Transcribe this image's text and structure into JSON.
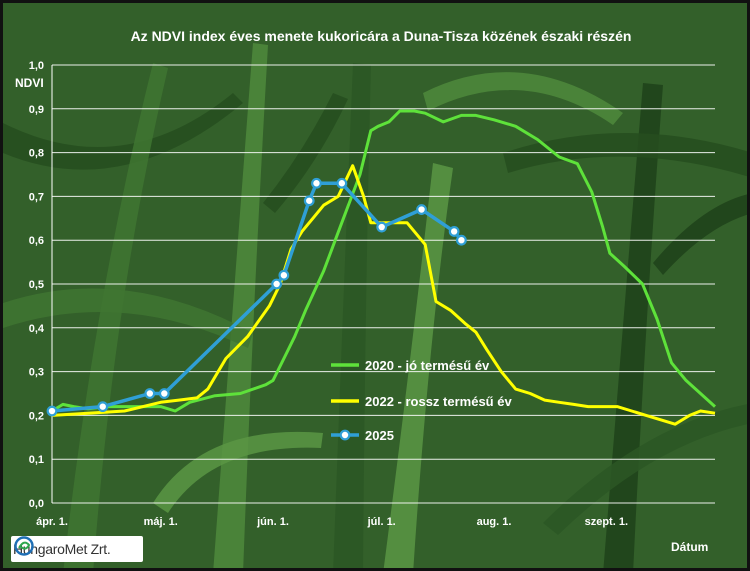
{
  "chart_data": {
    "type": "line",
    "title": "Az NDVI index éves menete kukoricára a Duna-Tisza közének északi részén",
    "ylabel": "NDVI",
    "xlabel": "Dátum",
    "ylim": [
      0,
      1.0
    ],
    "yticks": [
      "0,0",
      "0,1",
      "0,2",
      "0,3",
      "0,4",
      "0,5",
      "0,6",
      "0,7",
      "0,8",
      "0,9",
      "1,0"
    ],
    "xlim_days": [
      0,
      183
    ],
    "xticks": [
      {
        "label": "ápr. 1.",
        "day": 0
      },
      {
        "label": "máj. 1.",
        "day": 30
      },
      {
        "label": "jún. 1.",
        "day": 61
      },
      {
        "label": "júl. 1.",
        "day": 91
      },
      {
        "label": "aug. 1.",
        "day": 122
      },
      {
        "label": "szept. 1.",
        "day": 153
      }
    ],
    "grid": true,
    "series": [
      {
        "name": "2020 - jó termésű év",
        "color": "#5ee23a",
        "markers": false,
        "x": [
          0,
          3,
          6,
          10,
          15,
          20,
          25,
          30,
          34,
          38,
          45,
          52,
          59,
          61,
          64,
          67,
          70,
          75,
          80,
          85,
          88,
          90,
          93,
          96,
          100,
          103,
          108,
          113,
          117,
          122,
          128,
          134,
          140,
          145,
          149,
          152,
          154,
          158,
          163,
          167,
          171,
          175,
          179,
          183
        ],
        "y": [
          0.21,
          0.225,
          0.22,
          0.215,
          0.22,
          0.22,
          0.22,
          0.22,
          0.21,
          0.23,
          0.245,
          0.25,
          0.27,
          0.28,
          0.33,
          0.38,
          0.44,
          0.53,
          0.64,
          0.75,
          0.85,
          0.86,
          0.87,
          0.895,
          0.895,
          0.89,
          0.87,
          0.885,
          0.885,
          0.875,
          0.86,
          0.83,
          0.79,
          0.775,
          0.71,
          0.63,
          0.57,
          0.54,
          0.5,
          0.42,
          0.32,
          0.28,
          0.25,
          0.22
        ]
      },
      {
        "name": "2022 - rossz termésű év",
        "color": "#ffff00",
        "markers": false,
        "x": [
          0,
          10,
          20,
          30,
          35,
          40,
          43,
          48,
          54,
          60,
          63,
          66,
          69,
          72,
          75,
          79,
          83,
          86,
          88,
          91,
          94,
          98,
          103,
          106,
          110,
          114,
          117,
          120,
          124,
          128,
          132,
          136,
          140,
          144,
          148,
          152,
          156,
          160,
          164,
          168,
          172,
          176,
          179,
          183
        ],
        "y": [
          0.2,
          0.205,
          0.21,
          0.23,
          0.235,
          0.24,
          0.26,
          0.33,
          0.38,
          0.45,
          0.5,
          0.58,
          0.62,
          0.65,
          0.68,
          0.7,
          0.77,
          0.7,
          0.64,
          0.64,
          0.64,
          0.64,
          0.59,
          0.46,
          0.44,
          0.41,
          0.39,
          0.35,
          0.3,
          0.26,
          0.25,
          0.235,
          0.23,
          0.225,
          0.22,
          0.22,
          0.22,
          0.21,
          0.2,
          0.19,
          0.18,
          0.2,
          0.21,
          0.205
        ]
      },
      {
        "name": "2025",
        "color": "#2f9fd6",
        "markers": true,
        "x": [
          0,
          14,
          27,
          31,
          62,
          64,
          71,
          73,
          80,
          91,
          102,
          111,
          113
        ],
        "y": [
          0.21,
          0.22,
          0.25,
          0.25,
          0.5,
          0.52,
          0.69,
          0.73,
          0.73,
          0.63,
          0.67,
          0.62,
          0.6
        ]
      }
    ],
    "legend_position": "right"
  },
  "logo": {
    "text": "HungaroMet Zrt."
  }
}
